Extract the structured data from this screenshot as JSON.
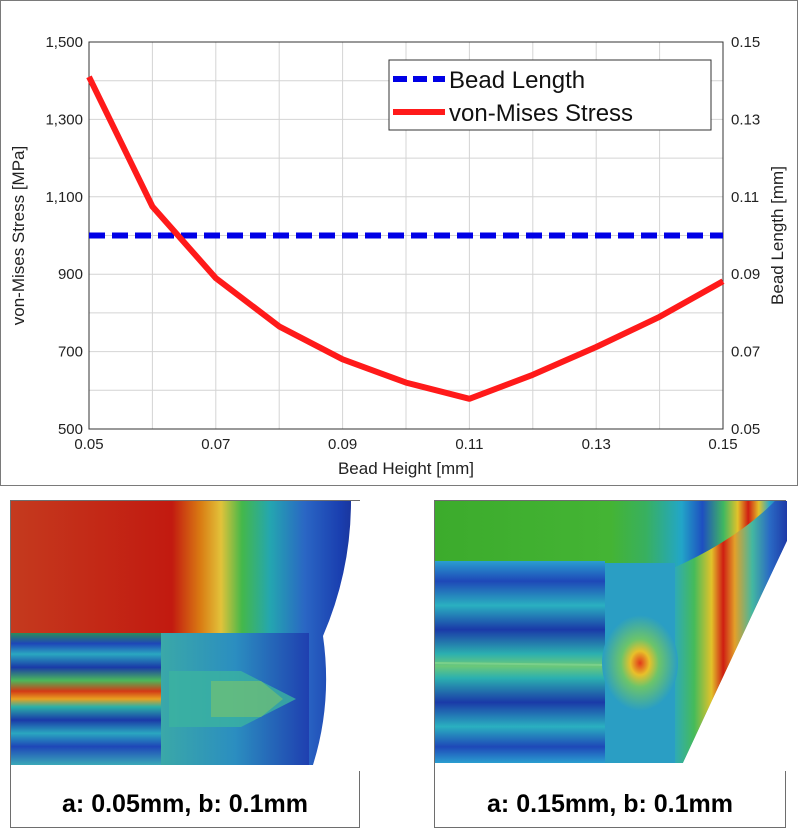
{
  "chart_data": {
    "type": "line",
    "x": [
      0.05,
      0.06,
      0.07,
      0.08,
      0.09,
      0.1,
      0.11,
      0.12,
      0.13,
      0.14,
      0.15
    ],
    "xlabel": "Bead Height [mm]",
    "xlim": [
      0.05,
      0.15
    ],
    "xticks": [
      "0.05",
      "0.07",
      "0.09",
      "0.11",
      "0.13",
      "0.15"
    ],
    "ylabel": "von-Mises Stress [MPa]",
    "ylim": [
      500,
      1500
    ],
    "yticks": [
      "500",
      "700",
      "900",
      "1,100",
      "1,300",
      "1,500"
    ],
    "y2label": "Bead Length [mm]",
    "y2lim": [
      0.05,
      0.15
    ],
    "y2ticks": [
      "0.05",
      "0.07",
      "0.09",
      "0.11",
      "0.13",
      "0.15"
    ],
    "grid": true,
    "legend_position": "top-right",
    "series": [
      {
        "name": "Bead Length",
        "axis": "right",
        "color": "#0000e6",
        "style": "dashed",
        "values": [
          0.1,
          0.1,
          0.1,
          0.1,
          0.1,
          0.1,
          0.1,
          0.1,
          0.1,
          0.1,
          0.1
        ]
      },
      {
        "name": "von-Mises Stress",
        "axis": "left",
        "color": "#ff1a1a",
        "style": "solid",
        "values": [
          1410,
          1075,
          890,
          765,
          680,
          620,
          578,
          640,
          712,
          790,
          882
        ]
      }
    ]
  },
  "panels": {
    "left": {
      "caption": "a: 0.05mm, b: 0.1mm"
    },
    "right": {
      "caption": "a: 0.15mm, b: 0.1mm"
    }
  }
}
